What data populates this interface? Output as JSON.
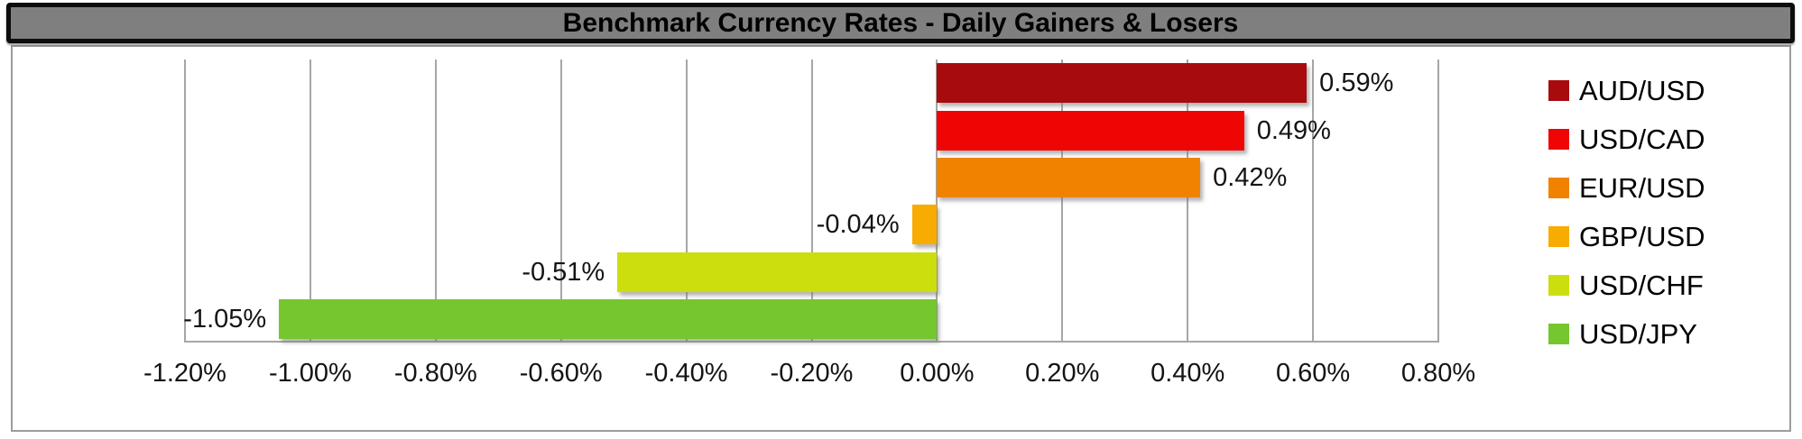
{
  "title": "Benchmark Currency Rates - Daily Gainers & Losers",
  "colors": {
    "title_bar_bg": "#7F7F7F",
    "title_bar_border": "#0D0D0D",
    "frame_border": "#9C9C9C",
    "gridline": "#A6A6A6",
    "text": "#141414",
    "plot_bg": "#FFFFFF"
  },
  "chart_data": {
    "type": "bar",
    "orientation": "horizontal",
    "title": "Benchmark Currency Rates - Daily Gainers & Losers",
    "categories": [
      "AUD/USD",
      "USD/CAD",
      "EUR/USD",
      "GBP/USD",
      "USD/CHF",
      "USD/JPY"
    ],
    "values": [
      0.59,
      0.49,
      0.42,
      -0.04,
      -0.51,
      -1.05
    ],
    "value_labels": [
      "0.59%",
      "0.49%",
      "0.42%",
      "-0.04%",
      "-0.51%",
      "-1.05%"
    ],
    "bar_colors": [
      "#A80B0D",
      "#F00505",
      "#F08200",
      "#F8AB00",
      "#CCDE0E",
      "#75C62F"
    ],
    "x_ticks": [
      -1.2,
      -1.0,
      -0.8,
      -0.6,
      -0.4,
      -0.2,
      0.0,
      0.2,
      0.4,
      0.6,
      0.8
    ],
    "x_tick_labels": [
      "-1.20%",
      "-1.00%",
      "-0.80%",
      "-0.60%",
      "-0.40%",
      "-0.20%",
      "0.00%",
      "0.20%",
      "0.40%",
      "0.60%",
      "0.80%"
    ],
    "xlim": [
      -1.2,
      0.8
    ],
    "xlabel": "",
    "ylabel": "",
    "grid": true,
    "legend_position": "right",
    "legend_entries": [
      "AUD/USD",
      "USD/CAD",
      "EUR/USD",
      "GBP/USD",
      "USD/CHF",
      "USD/JPY"
    ]
  }
}
